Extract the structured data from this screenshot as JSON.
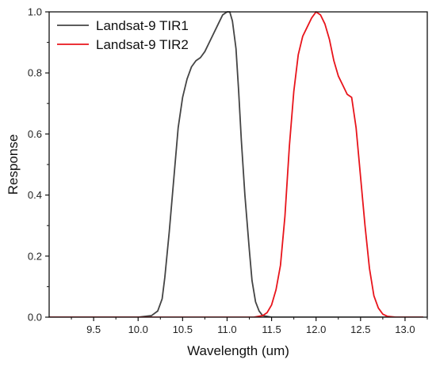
{
  "chart_data": {
    "type": "line",
    "title": "",
    "xlabel": "Wavelength (um)",
    "ylabel": "Response",
    "xlim": [
      9.0,
      13.25
    ],
    "ylim": [
      0.0,
      1.0
    ],
    "xticks": [
      9.5,
      10.0,
      10.5,
      11.0,
      11.5,
      12.0,
      12.5,
      13.0
    ],
    "xtick_labels": [
      "9.5",
      "10.0",
      "10.5",
      "11.0",
      "11.5",
      "12.0",
      "12.5",
      "13.0"
    ],
    "yticks": [
      0.0,
      0.2,
      0.4,
      0.6,
      0.8,
      1.0
    ],
    "ytick_labels": [
      "0.0",
      "0.2",
      "0.4",
      "0.6",
      "0.8",
      "1.0"
    ],
    "grid": false,
    "legend_position": "top-left",
    "series": [
      {
        "name": "Landsat-9 TIR1",
        "color": "#444444",
        "x": [
          9.0,
          10.0,
          10.15,
          10.22,
          10.27,
          10.3,
          10.35,
          10.4,
          10.45,
          10.5,
          10.55,
          10.6,
          10.65,
          10.7,
          10.75,
          10.8,
          10.85,
          10.9,
          10.95,
          11.0,
          11.03,
          11.06,
          11.1,
          11.13,
          11.16,
          11.2,
          11.25,
          11.28,
          11.32,
          11.36,
          11.4,
          11.5,
          11.6,
          13.2
        ],
        "y": [
          0.0,
          0.0,
          0.005,
          0.02,
          0.06,
          0.13,
          0.28,
          0.45,
          0.62,
          0.72,
          0.78,
          0.82,
          0.84,
          0.85,
          0.87,
          0.9,
          0.93,
          0.96,
          0.99,
          1.0,
          1.0,
          0.97,
          0.88,
          0.74,
          0.58,
          0.4,
          0.22,
          0.12,
          0.05,
          0.02,
          0.005,
          0.0,
          0.0,
          0.0
        ]
      },
      {
        "name": "Landsat-9 TIR2",
        "color": "#e8141b",
        "x": [
          9.0,
          11.3,
          11.4,
          11.45,
          11.5,
          11.55,
          11.6,
          11.65,
          11.7,
          11.75,
          11.8,
          11.85,
          11.9,
          11.95,
          12.0,
          12.05,
          12.1,
          12.15,
          12.2,
          12.25,
          12.3,
          12.35,
          12.4,
          12.45,
          12.5,
          12.55,
          12.6,
          12.65,
          12.7,
          12.75,
          12.8,
          12.9,
          13.0,
          13.2
        ],
        "y": [
          0.0,
          0.0,
          0.005,
          0.015,
          0.04,
          0.09,
          0.17,
          0.33,
          0.56,
          0.74,
          0.86,
          0.92,
          0.95,
          0.98,
          1.0,
          0.99,
          0.96,
          0.91,
          0.84,
          0.79,
          0.76,
          0.73,
          0.72,
          0.62,
          0.46,
          0.3,
          0.16,
          0.07,
          0.03,
          0.01,
          0.003,
          0.0,
          0.0,
          0.0
        ]
      }
    ]
  }
}
